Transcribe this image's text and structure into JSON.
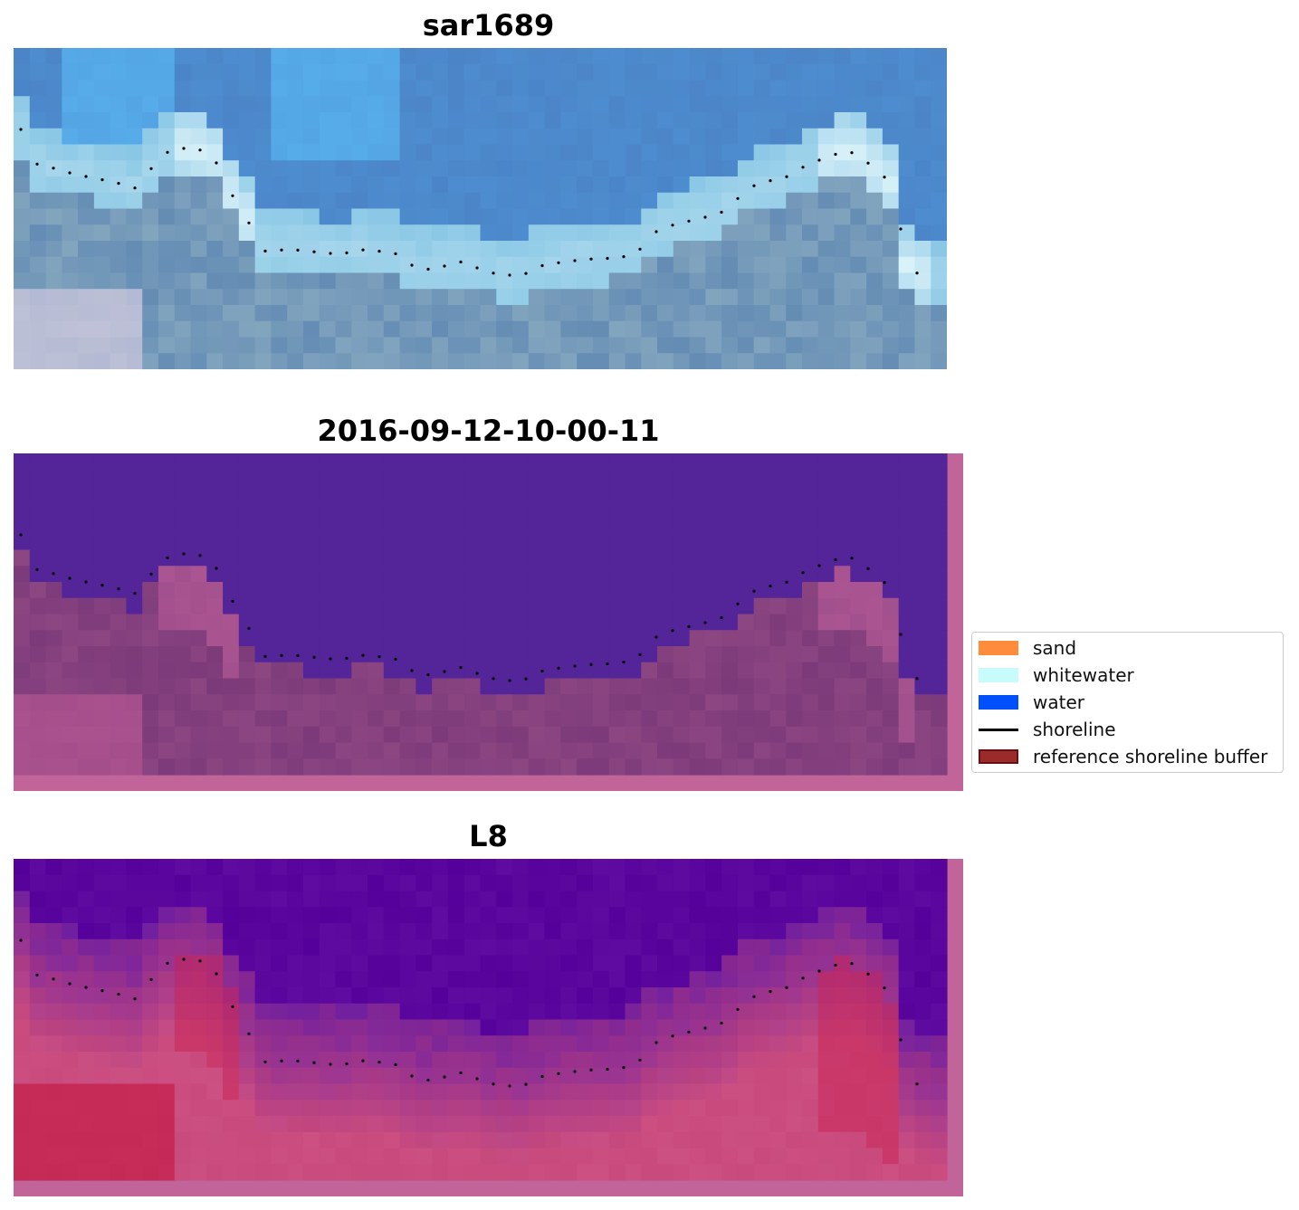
{
  "panels": [
    {
      "title": "sar1689",
      "kind": "rgb"
    },
    {
      "title": "2016-09-12-10-00-11",
      "kind": "classified"
    },
    {
      "title": "L8",
      "kind": "index"
    }
  ],
  "legend": {
    "items": [
      {
        "label": "sand",
        "type": "patch",
        "color": "#ff8c3a"
      },
      {
        "label": "whitewater",
        "type": "patch",
        "color": "#c8fbfb"
      },
      {
        "label": "water",
        "type": "patch",
        "color": "#0050ff"
      },
      {
        "label": "shoreline",
        "type": "line",
        "color": "#000000"
      },
      {
        "label": "reference shoreline buffer",
        "type": "patch",
        "color": "#9b2a2a",
        "edge": "#6b1010"
      }
    ]
  },
  "colors": {
    "water_rgb": "#4f86c6",
    "water_class": "#532599",
    "sand_class": "#7c3a7a",
    "buffer_border": "#c0649a",
    "index_water": "#55009a",
    "index_land": "#c8386a"
  }
}
